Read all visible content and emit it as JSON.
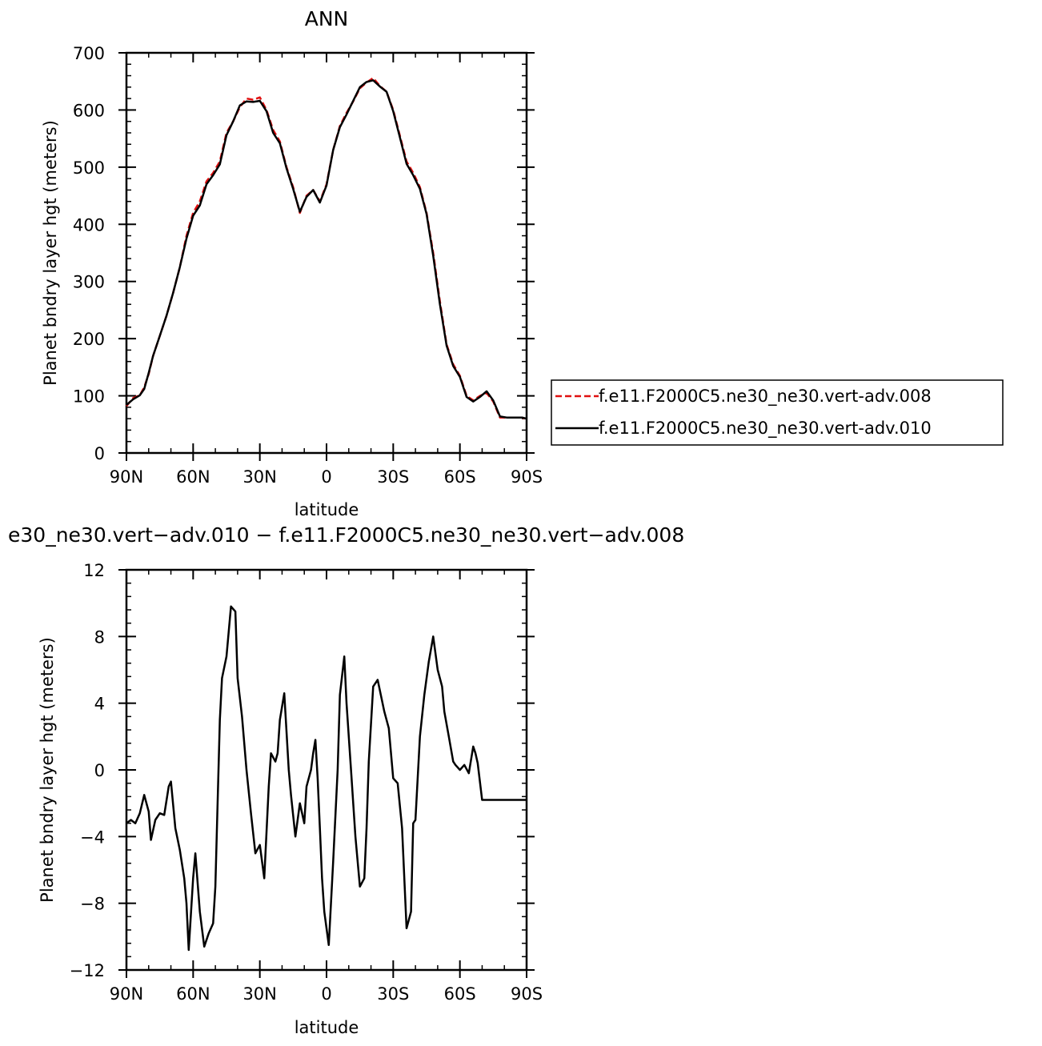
{
  "chart_data": [
    {
      "type": "line",
      "title": "ANN",
      "xlabel": "latitude",
      "ylabel": "Planet bndry layer hgt (meters)",
      "xlim": [
        -90,
        90
      ],
      "ylim": [
        0,
        700
      ],
      "x_tick_values": [
        -90,
        -60,
        -30,
        0,
        30,
        60,
        90
      ],
      "x_tick_labels": [
        "90N",
        "60N",
        "30N",
        "0",
        "30S",
        "60S",
        "90S"
      ],
      "y_tick_values": [
        0,
        100,
        200,
        300,
        400,
        500,
        600,
        700
      ],
      "y_tick_labels": [
        "0",
        "100",
        "200",
        "300",
        "400",
        "500",
        "600",
        "700"
      ],
      "grid": false,
      "legend_position": "right",
      "series": [
        {
          "name": "f.e11.F2000C5.ne30_ne30.vert-adv.008",
          "color": "#e01010",
          "dash": "dashed",
          "x": [
            -90,
            -87,
            -84,
            -82,
            -80,
            -78,
            -75,
            -72,
            -69,
            -66,
            -63,
            -60,
            -57,
            -54,
            -51,
            -48,
            -45,
            -42,
            -39,
            -36,
            -33,
            -30,
            -27,
            -24,
            -21,
            -18,
            -15,
            -12,
            -9,
            -6,
            -3,
            0,
            3,
            6,
            9,
            12,
            15,
            18,
            21,
            24,
            27,
            30,
            33,
            36,
            39,
            42,
            45,
            48,
            51,
            54,
            57,
            60,
            63,
            66,
            69,
            72,
            75,
            78,
            81,
            84,
            86,
            88,
            90
          ],
          "y": [
            82,
            96,
            101,
            115,
            138,
            170,
            205,
            240,
            280,
            325,
            380,
            420,
            440,
            475,
            490,
            510,
            560,
            580,
            605,
            620,
            618,
            622,
            600,
            565,
            545,
            500,
            465,
            420,
            450,
            460,
            440,
            470,
            530,
            572,
            595,
            615,
            638,
            648,
            656,
            642,
            632,
            600,
            555,
            510,
            490,
            465,
            420,
            350,
            265,
            190,
            155,
            135,
            100,
            92,
            100,
            105,
            90,
            62,
            62,
            62,
            62,
            62,
            58
          ]
        },
        {
          "name": "f.e11.F2000C5.ne30_ne30.vert-adv.010",
          "color": "#000000",
          "dash": "solid",
          "x": [
            -90,
            -87,
            -84,
            -82,
            -80,
            -78,
            -75,
            -72,
            -69,
            -66,
            -63,
            -60,
            -57,
            -54,
            -51,
            -48,
            -45,
            -42,
            -39,
            -36,
            -33,
            -30,
            -27,
            -24,
            -21,
            -18,
            -15,
            -12,
            -9,
            -6,
            -3,
            0,
            3,
            6,
            9,
            12,
            15,
            18,
            21,
            24,
            27,
            30,
            33,
            36,
            39,
            42,
            45,
            48,
            51,
            54,
            57,
            60,
            63,
            66,
            69,
            72,
            75,
            78,
            81,
            84,
            86,
            88,
            90
          ],
          "y": [
            84,
            94,
            101,
            112,
            140,
            170,
            205,
            240,
            280,
            325,
            375,
            415,
            433,
            470,
            486,
            505,
            556,
            580,
            608,
            615,
            614,
            616,
            598,
            560,
            542,
            498,
            462,
            422,
            448,
            460,
            438,
            468,
            530,
            570,
            592,
            616,
            640,
            649,
            652,
            641,
            632,
            598,
            552,
            506,
            486,
            462,
            418,
            345,
            260,
            188,
            152,
            133,
            98,
            90,
            98,
            108,
            92,
            64,
            62,
            62,
            62,
            62,
            60
          ]
        }
      ]
    },
    {
      "type": "line",
      "title": "e30_ne30.vert−adv.010 − f.e11.F2000C5.ne30_ne30.vert−adv.008",
      "xlabel": "latitude",
      "ylabel": "Planet bndry layer hgt (meters)",
      "xlim": [
        -90,
        90
      ],
      "ylim": [
        -12,
        12
      ],
      "x_tick_values": [
        -90,
        -60,
        -30,
        0,
        30,
        60,
        90
      ],
      "x_tick_labels": [
        "90N",
        "60N",
        "30N",
        "0",
        "30S",
        "60S",
        "90S"
      ],
      "y_tick_values": [
        -12,
        -8,
        -4,
        0,
        4,
        8,
        12
      ],
      "y_tick_labels": [
        "−12",
        "−8",
        "−4",
        "0",
        "4",
        "8",
        "12"
      ],
      "grid": false,
      "series": [
        {
          "color": "#000000",
          "dash": "solid",
          "x": [
            -90,
            -88,
            -86,
            -84,
            -82,
            -80,
            -79,
            -77,
            -75,
            -73,
            -71,
            -70,
            -68,
            -66,
            -64,
            -63,
            -62,
            -60,
            -59,
            -57,
            -55,
            -53,
            -51,
            -50,
            -48,
            -47,
            -45,
            -43,
            -41,
            -40,
            -38,
            -36,
            -34,
            -32,
            -30,
            -28,
            -26,
            -25,
            -23,
            -22,
            -21,
            -19,
            -17,
            -16,
            -14,
            -12,
            -10,
            -9,
            -7,
            -6,
            -5,
            -4,
            -3,
            -2,
            -1,
            1,
            3,
            5,
            6,
            8,
            9,
            11,
            13,
            15,
            17,
            18,
            19,
            21,
            23,
            26,
            28,
            30,
            32,
            34,
            36,
            38,
            39,
            40,
            42,
            44,
            46,
            48,
            50,
            52,
            53,
            55,
            57,
            58,
            60,
            62,
            64,
            66,
            67,
            68,
            70,
            72,
            74,
            76,
            78,
            80,
            82,
            84,
            86,
            88,
            90
          ],
          "y": [
            -3.2,
            -3.0,
            -3.2,
            -2.6,
            -1.5,
            -2.5,
            -4.2,
            -3.0,
            -2.6,
            -2.7,
            -1.0,
            -0.7,
            -3.5,
            -4.8,
            -6.5,
            -8.0,
            -10.8,
            -6.5,
            -5.0,
            -8.5,
            -10.6,
            -9.8,
            -9.2,
            -7.0,
            3.0,
            5.5,
            6.8,
            9.8,
            9.5,
            5.5,
            3.2,
            0.0,
            -2.6,
            -5.0,
            -4.5,
            -6.5,
            -1.0,
            1.0,
            0.5,
            1.0,
            3.0,
            4.6,
            0.0,
            -1.5,
            -4.0,
            -2.0,
            -3.2,
            -1.0,
            0.0,
            1.0,
            1.8,
            -0.5,
            -3.5,
            -6.5,
            -8.5,
            -10.5,
            -5.5,
            0.0,
            4.5,
            6.8,
            4.0,
            0.0,
            -4.0,
            -7.0,
            -6.5,
            -3.5,
            0.5,
            5.0,
            5.4,
            3.5,
            2.5,
            -0.5,
            -0.8,
            -3.5,
            -9.5,
            -8.5,
            -3.2,
            -3.0,
            2.0,
            4.5,
            6.5,
            8.0,
            6.0,
            5.0,
            3.5,
            2.0,
            0.5,
            0.3,
            0.0,
            0.3,
            -0.2,
            1.4,
            1.0,
            0.4,
            -1.8,
            -1.8,
            -1.8,
            -1.8,
            -1.8,
            -1.8,
            -1.8,
            -1.8,
            -1.8,
            -1.8,
            -1.8
          ]
        }
      ]
    }
  ]
}
